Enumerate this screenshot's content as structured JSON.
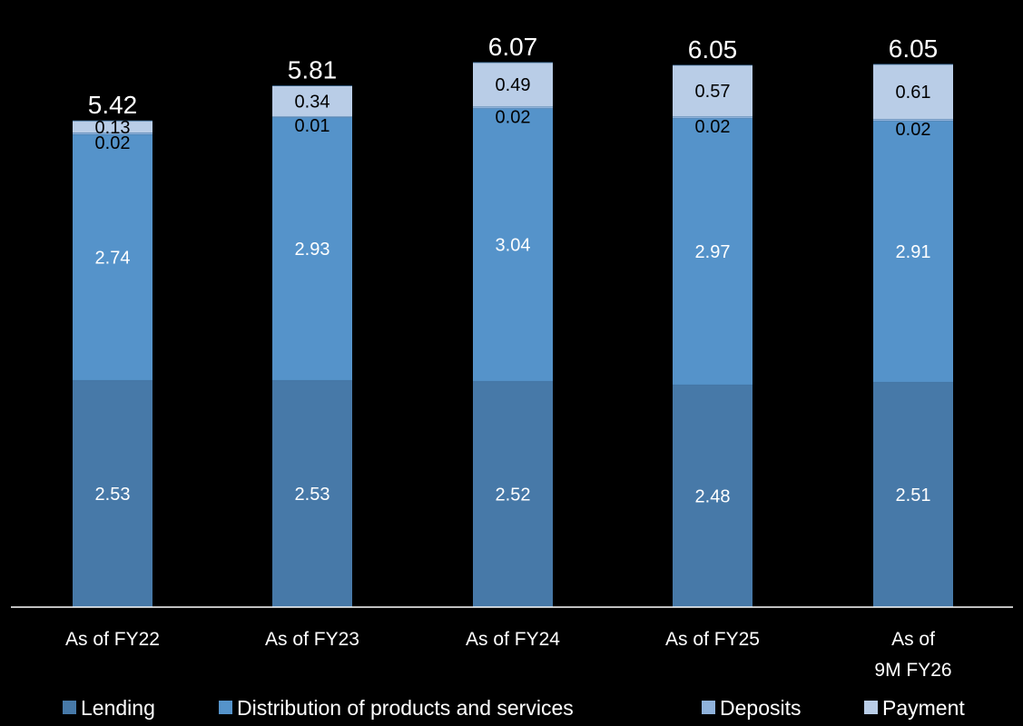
{
  "chart_data": {
    "type": "bar",
    "stacked": true,
    "categories": [
      "As of FY22",
      "As of FY23",
      "As of FY24",
      "As of FY25",
      "As of\n9M FY26"
    ],
    "series": [
      {
        "name": "Lending",
        "values": [
          2.53,
          2.53,
          2.52,
          2.48,
          2.51
        ],
        "color": "#4779A8",
        "label_color": "#ffffff"
      },
      {
        "name": "Distribution of products and services",
        "values": [
          2.74,
          2.93,
          3.04,
          2.97,
          2.91
        ],
        "color": "#5593CA",
        "label_color": "#ffffff"
      },
      {
        "name": "Deposits",
        "values": [
          0.02,
          0.01,
          0.02,
          0.02,
          0.02
        ],
        "color": "#8FB2DB",
        "label_color": "#000000"
      },
      {
        "name": "Payment",
        "values": [
          0.13,
          0.34,
          0.49,
          0.57,
          0.61
        ],
        "color": "#B9CDE7",
        "label_color": "#000000"
      }
    ],
    "totals": [
      "5.42",
      "5.81",
      "6.07",
      "6.05",
      "6.05"
    ],
    "data_labels": [
      [
        "2.53",
        "2.53",
        "2.52",
        "2.48",
        "2.51"
      ],
      [
        "2.74",
        "2.93",
        "3.04",
        "2.97",
        "2.91"
      ],
      [
        "0.02",
        "0.01",
        "0.02",
        "0.02",
        "0.02"
      ],
      [
        "0.13",
        "0.34",
        "0.49",
        "0.57",
        "0.61"
      ]
    ],
    "ylim": [
      0,
      6.12
    ],
    "grid": false,
    "legend_position": "bottom",
    "title": "",
    "xlabel": "",
    "ylabel": ""
  }
}
